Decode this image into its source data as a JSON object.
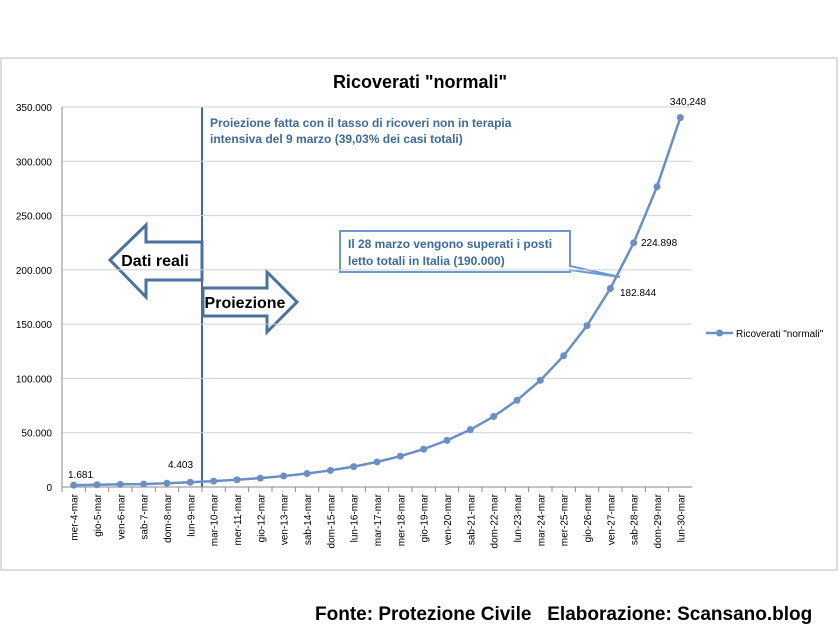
{
  "chart_data": {
    "type": "line",
    "title": "Ricoverati \"normali\"",
    "categories": [
      "mer-4-mar",
      "gio-5-mar",
      "ven-6-mar",
      "sab-7-mar",
      "dom-8-mar",
      "lun-9-mar",
      "mar-10-mar",
      "mer-11-mar",
      "gio-12-mar",
      "ven-13-mar",
      "sab-14-mar",
      "dom-15-mar",
      "lun-16-mar",
      "mar-17-mar",
      "mer-18-mar",
      "gio-19-mar",
      "ven-20-mar",
      "sab-21-mar",
      "dom-22-mar",
      "lun-23-mar",
      "mar-24-mar",
      "mer-25-mar",
      "gio-26-mar",
      "ven-27-mar",
      "sab-28-mar",
      "dom-29-mar",
      "lun-30-mar"
    ],
    "series": [
      {
        "name": "Ricoverati \"normali\"",
        "color": "#6a8fc4",
        "values": [
          1681,
          2100,
          2400,
          2700,
          3500,
          4403,
          5416,
          6661,
          8194,
          10078,
          12396,
          15247,
          18754,
          23068,
          28373,
          34899,
          42926,
          52799,
          64943,
          79880,
          98253,
          120851,
          148647,
          182844,
          224898,
          276620,
          340248
        ],
        "value_labels": [
          "1.681",
          null,
          null,
          null,
          null,
          "4.403",
          null,
          null,
          null,
          null,
          null,
          null,
          null,
          null,
          null,
          null,
          null,
          null,
          null,
          null,
          null,
          null,
          null,
          "182.844",
          "224.898",
          null,
          "340,248"
        ]
      }
    ],
    "ylim": [
      0,
      350000
    ],
    "yticks": [
      0,
      {
        "value": 50000,
        "label": "50.000"
      },
      {
        "value": 100000,
        "label": "100.000"
      },
      {
        "value": 150000,
        "label": "150.000"
      },
      {
        "value": 200000,
        "label": "200.000"
      },
      {
        "value": 250000,
        "label": "250.000"
      },
      {
        "value": 300000,
        "label": "300.000"
      },
      {
        "value": 350000,
        "label": "350.000"
      }
    ],
    "grid": true,
    "legend": "right",
    "annotations": {
      "projection_note": [
        "Proiezione fatta con il tasso di ricoveri non in terapia",
        "intensiva del 9 marzo (39,03% dei casi totali)"
      ],
      "beds_note": [
        "Il 28 marzo vengono superati i posti",
        "letto totali in Italia (190.000)"
      ],
      "left_arrow": "Dati reali",
      "right_arrow": "Proiezione"
    },
    "footer": "Fonte: Protezione Civile   Elaborazione: Scansano.blog"
  }
}
